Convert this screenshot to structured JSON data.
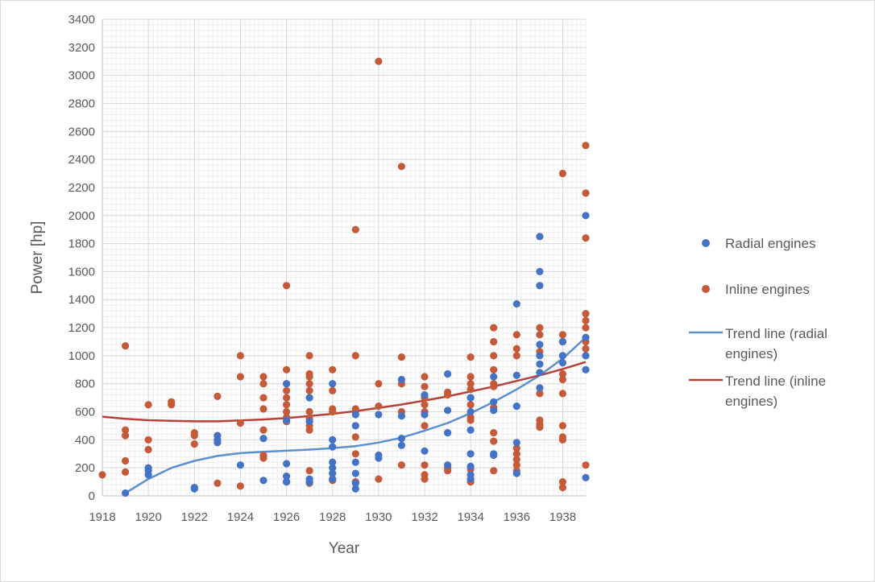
{
  "chart_data": {
    "type": "scatter",
    "title": "",
    "xlabel": "Year",
    "ylabel": "Power [hp]",
    "xlim": [
      1918,
      1939
    ],
    "ylim": [
      0,
      3400
    ],
    "x_ticks": [
      "1918",
      "1920",
      "1922",
      "1924",
      "1926",
      "1928",
      "1930",
      "1932",
      "1934",
      "1936",
      "1938"
    ],
    "y_ticks": [
      "0",
      "200",
      "400",
      "600",
      "800",
      "1000",
      "1200",
      "1400",
      "1600",
      "1800",
      "2000",
      "2200",
      "2400",
      "2600",
      "2800",
      "3000",
      "3200",
      "3400"
    ],
    "grid": true,
    "legend_position": "right",
    "colors": {
      "radial": "#4472c4",
      "inline": "#c55a3a",
      "trend_radial": "#5b8fd0",
      "trend_inline": "#b5423a"
    },
    "series": [
      {
        "name": "Radial engines",
        "kind": "scatter",
        "points": [
          [
            1919,
            20
          ],
          [
            1920,
            150
          ],
          [
            1920,
            180
          ],
          [
            1920,
            200
          ],
          [
            1922,
            50
          ],
          [
            1922,
            60
          ],
          [
            1923,
            380
          ],
          [
            1923,
            400
          ],
          [
            1923,
            430
          ],
          [
            1924,
            220
          ],
          [
            1925,
            110
          ],
          [
            1925,
            410
          ],
          [
            1926,
            100
          ],
          [
            1926,
            140
          ],
          [
            1926,
            230
          ],
          [
            1926,
            540
          ],
          [
            1926,
            800
          ],
          [
            1927,
            100
          ],
          [
            1927,
            120
          ],
          [
            1927,
            530
          ],
          [
            1927,
            700
          ],
          [
            1928,
            120
          ],
          [
            1928,
            160
          ],
          [
            1928,
            200
          ],
          [
            1928,
            240
          ],
          [
            1928,
            350
          ],
          [
            1928,
            400
          ],
          [
            1928,
            800
          ],
          [
            1929,
            50
          ],
          [
            1929,
            90
          ],
          [
            1929,
            160
          ],
          [
            1929,
            240
          ],
          [
            1929,
            500
          ],
          [
            1929,
            580
          ],
          [
            1930,
            270
          ],
          [
            1930,
            290
          ],
          [
            1930,
            580
          ],
          [
            1931,
            360
          ],
          [
            1931,
            410
          ],
          [
            1931,
            570
          ],
          [
            1931,
            830
          ],
          [
            1932,
            320
          ],
          [
            1932,
            580
          ],
          [
            1932,
            720
          ],
          [
            1933,
            220
          ],
          [
            1933,
            450
          ],
          [
            1933,
            610
          ],
          [
            1933,
            870
          ],
          [
            1934,
            120
          ],
          [
            1934,
            150
          ],
          [
            1934,
            210
          ],
          [
            1934,
            300
          ],
          [
            1934,
            470
          ],
          [
            1934,
            600
          ],
          [
            1934,
            700
          ],
          [
            1935,
            290
          ],
          [
            1935,
            300
          ],
          [
            1935,
            610
          ],
          [
            1935,
            670
          ],
          [
            1935,
            850
          ],
          [
            1936,
            160
          ],
          [
            1936,
            380
          ],
          [
            1936,
            640
          ],
          [
            1936,
            860
          ],
          [
            1936,
            1370
          ],
          [
            1937,
            770
          ],
          [
            1937,
            880
          ],
          [
            1937,
            940
          ],
          [
            1937,
            1000
          ],
          [
            1937,
            1080
          ],
          [
            1937,
            1500
          ],
          [
            1937,
            1600
          ],
          [
            1937,
            1850
          ],
          [
            1938,
            950
          ],
          [
            1938,
            1000
          ],
          [
            1938,
            1100
          ],
          [
            1939,
            130
          ],
          [
            1939,
            900
          ],
          [
            1939,
            1000
          ],
          [
            1939,
            1130
          ],
          [
            1939,
            2000
          ]
        ]
      },
      {
        "name": "Inline engines",
        "kind": "scatter",
        "points": [
          [
            1918,
            150
          ],
          [
            1919,
            170
          ],
          [
            1919,
            250
          ],
          [
            1919,
            430
          ],
          [
            1919,
            470
          ],
          [
            1919,
            1070
          ],
          [
            1920,
            330
          ],
          [
            1920,
            400
          ],
          [
            1920,
            650
          ],
          [
            1921,
            650
          ],
          [
            1921,
            670
          ],
          [
            1922,
            370
          ],
          [
            1922,
            430
          ],
          [
            1922,
            450
          ],
          [
            1923,
            90
          ],
          [
            1923,
            710
          ],
          [
            1924,
            70
          ],
          [
            1924,
            520
          ],
          [
            1924,
            850
          ],
          [
            1924,
            1000
          ],
          [
            1925,
            270
          ],
          [
            1925,
            290
          ],
          [
            1925,
            470
          ],
          [
            1925,
            620
          ],
          [
            1925,
            700
          ],
          [
            1925,
            800
          ],
          [
            1925,
            850
          ],
          [
            1926,
            100
          ],
          [
            1926,
            530
          ],
          [
            1926,
            560
          ],
          [
            1926,
            600
          ],
          [
            1926,
            650
          ],
          [
            1926,
            700
          ],
          [
            1926,
            750
          ],
          [
            1926,
            800
          ],
          [
            1926,
            900
          ],
          [
            1926,
            1500
          ],
          [
            1927,
            90
          ],
          [
            1927,
            180
          ],
          [
            1927,
            470
          ],
          [
            1927,
            500
          ],
          [
            1927,
            550
          ],
          [
            1927,
            600
          ],
          [
            1927,
            750
          ],
          [
            1927,
            800
          ],
          [
            1927,
            850
          ],
          [
            1927,
            870
          ],
          [
            1927,
            1000
          ],
          [
            1928,
            110
          ],
          [
            1928,
            600
          ],
          [
            1928,
            620
          ],
          [
            1928,
            750
          ],
          [
            1928,
            900
          ],
          [
            1929,
            100
          ],
          [
            1929,
            300
          ],
          [
            1929,
            420
          ],
          [
            1929,
            600
          ],
          [
            1929,
            620
          ],
          [
            1929,
            1000
          ],
          [
            1929,
            1900
          ],
          [
            1930,
            120
          ],
          [
            1930,
            640
          ],
          [
            1930,
            800
          ],
          [
            1930,
            3100
          ],
          [
            1931,
            220
          ],
          [
            1931,
            600
          ],
          [
            1931,
            800
          ],
          [
            1931,
            990
          ],
          [
            1931,
            2350
          ],
          [
            1932,
            120
          ],
          [
            1932,
            150
          ],
          [
            1932,
            220
          ],
          [
            1932,
            500
          ],
          [
            1932,
            600
          ],
          [
            1932,
            650
          ],
          [
            1932,
            700
          ],
          [
            1932,
            780
          ],
          [
            1932,
            850
          ],
          [
            1933,
            180
          ],
          [
            1933,
            200
          ],
          [
            1933,
            720
          ],
          [
            1933,
            740
          ],
          [
            1934,
            100
          ],
          [
            1934,
            190
          ],
          [
            1934,
            540
          ],
          [
            1934,
            560
          ],
          [
            1934,
            650
          ],
          [
            1934,
            700
          ],
          [
            1934,
            760
          ],
          [
            1934,
            800
          ],
          [
            1934,
            850
          ],
          [
            1934,
            990
          ],
          [
            1935,
            180
          ],
          [
            1935,
            390
          ],
          [
            1935,
            450
          ],
          [
            1935,
            630
          ],
          [
            1935,
            780
          ],
          [
            1935,
            800
          ],
          [
            1935,
            900
          ],
          [
            1935,
            1000
          ],
          [
            1935,
            1100
          ],
          [
            1935,
            1200
          ],
          [
            1936,
            180
          ],
          [
            1936,
            220
          ],
          [
            1936,
            260
          ],
          [
            1936,
            300
          ],
          [
            1936,
            340
          ],
          [
            1936,
            1000
          ],
          [
            1936,
            1050
          ],
          [
            1936,
            1150
          ],
          [
            1937,
            490
          ],
          [
            1937,
            510
          ],
          [
            1937,
            540
          ],
          [
            1937,
            730
          ],
          [
            1937,
            1030
          ],
          [
            1937,
            1150
          ],
          [
            1937,
            1200
          ],
          [
            1938,
            60
          ],
          [
            1938,
            100
          ],
          [
            1938,
            400
          ],
          [
            1938,
            420
          ],
          [
            1938,
            500
          ],
          [
            1938,
            730
          ],
          [
            1938,
            830
          ],
          [
            1938,
            870
          ],
          [
            1938,
            1000
          ],
          [
            1938,
            1100
          ],
          [
            1938,
            1150
          ],
          [
            1938,
            2300
          ],
          [
            1939,
            220
          ],
          [
            1939,
            1000
          ],
          [
            1939,
            1050
          ],
          [
            1939,
            1100
          ],
          [
            1939,
            1200
          ],
          [
            1939,
            1250
          ],
          [
            1939,
            1300
          ],
          [
            1939,
            1840
          ],
          [
            1939,
            2160
          ],
          [
            1939,
            2500
          ]
        ]
      },
      {
        "name": "Trend line (radial engines)",
        "name_lines": [
          "Trend line (radial",
          "engines)"
        ],
        "kind": "line",
        "points": [
          [
            1919,
            20
          ],
          [
            1920,
            120
          ],
          [
            1921,
            200
          ],
          [
            1922,
            250
          ],
          [
            1923,
            285
          ],
          [
            1924,
            305
          ],
          [
            1925,
            315
          ],
          [
            1926,
            322
          ],
          [
            1927,
            330
          ],
          [
            1928,
            340
          ],
          [
            1929,
            355
          ],
          [
            1930,
            380
          ],
          [
            1931,
            415
          ],
          [
            1932,
            465
          ],
          [
            1933,
            520
          ],
          [
            1934,
            590
          ],
          [
            1935,
            670
          ],
          [
            1936,
            760
          ],
          [
            1937,
            860
          ],
          [
            1938,
            980
          ],
          [
            1939,
            1130
          ]
        ]
      },
      {
        "name": "Trend line (inline engines)",
        "name_lines": [
          "Trend line (inline",
          "engines)"
        ],
        "kind": "line",
        "points": [
          [
            1918,
            565
          ],
          [
            1919,
            550
          ],
          [
            1920,
            540
          ],
          [
            1921,
            535
          ],
          [
            1922,
            532
          ],
          [
            1923,
            532
          ],
          [
            1924,
            538
          ],
          [
            1925,
            545
          ],
          [
            1926,
            555
          ],
          [
            1927,
            570
          ],
          [
            1928,
            585
          ],
          [
            1929,
            605
          ],
          [
            1930,
            628
          ],
          [
            1931,
            652
          ],
          [
            1932,
            680
          ],
          [
            1933,
            710
          ],
          [
            1934,
            745
          ],
          [
            1935,
            780
          ],
          [
            1936,
            820
          ],
          [
            1937,
            860
          ],
          [
            1938,
            905
          ],
          [
            1939,
            955
          ]
        ]
      }
    ]
  }
}
